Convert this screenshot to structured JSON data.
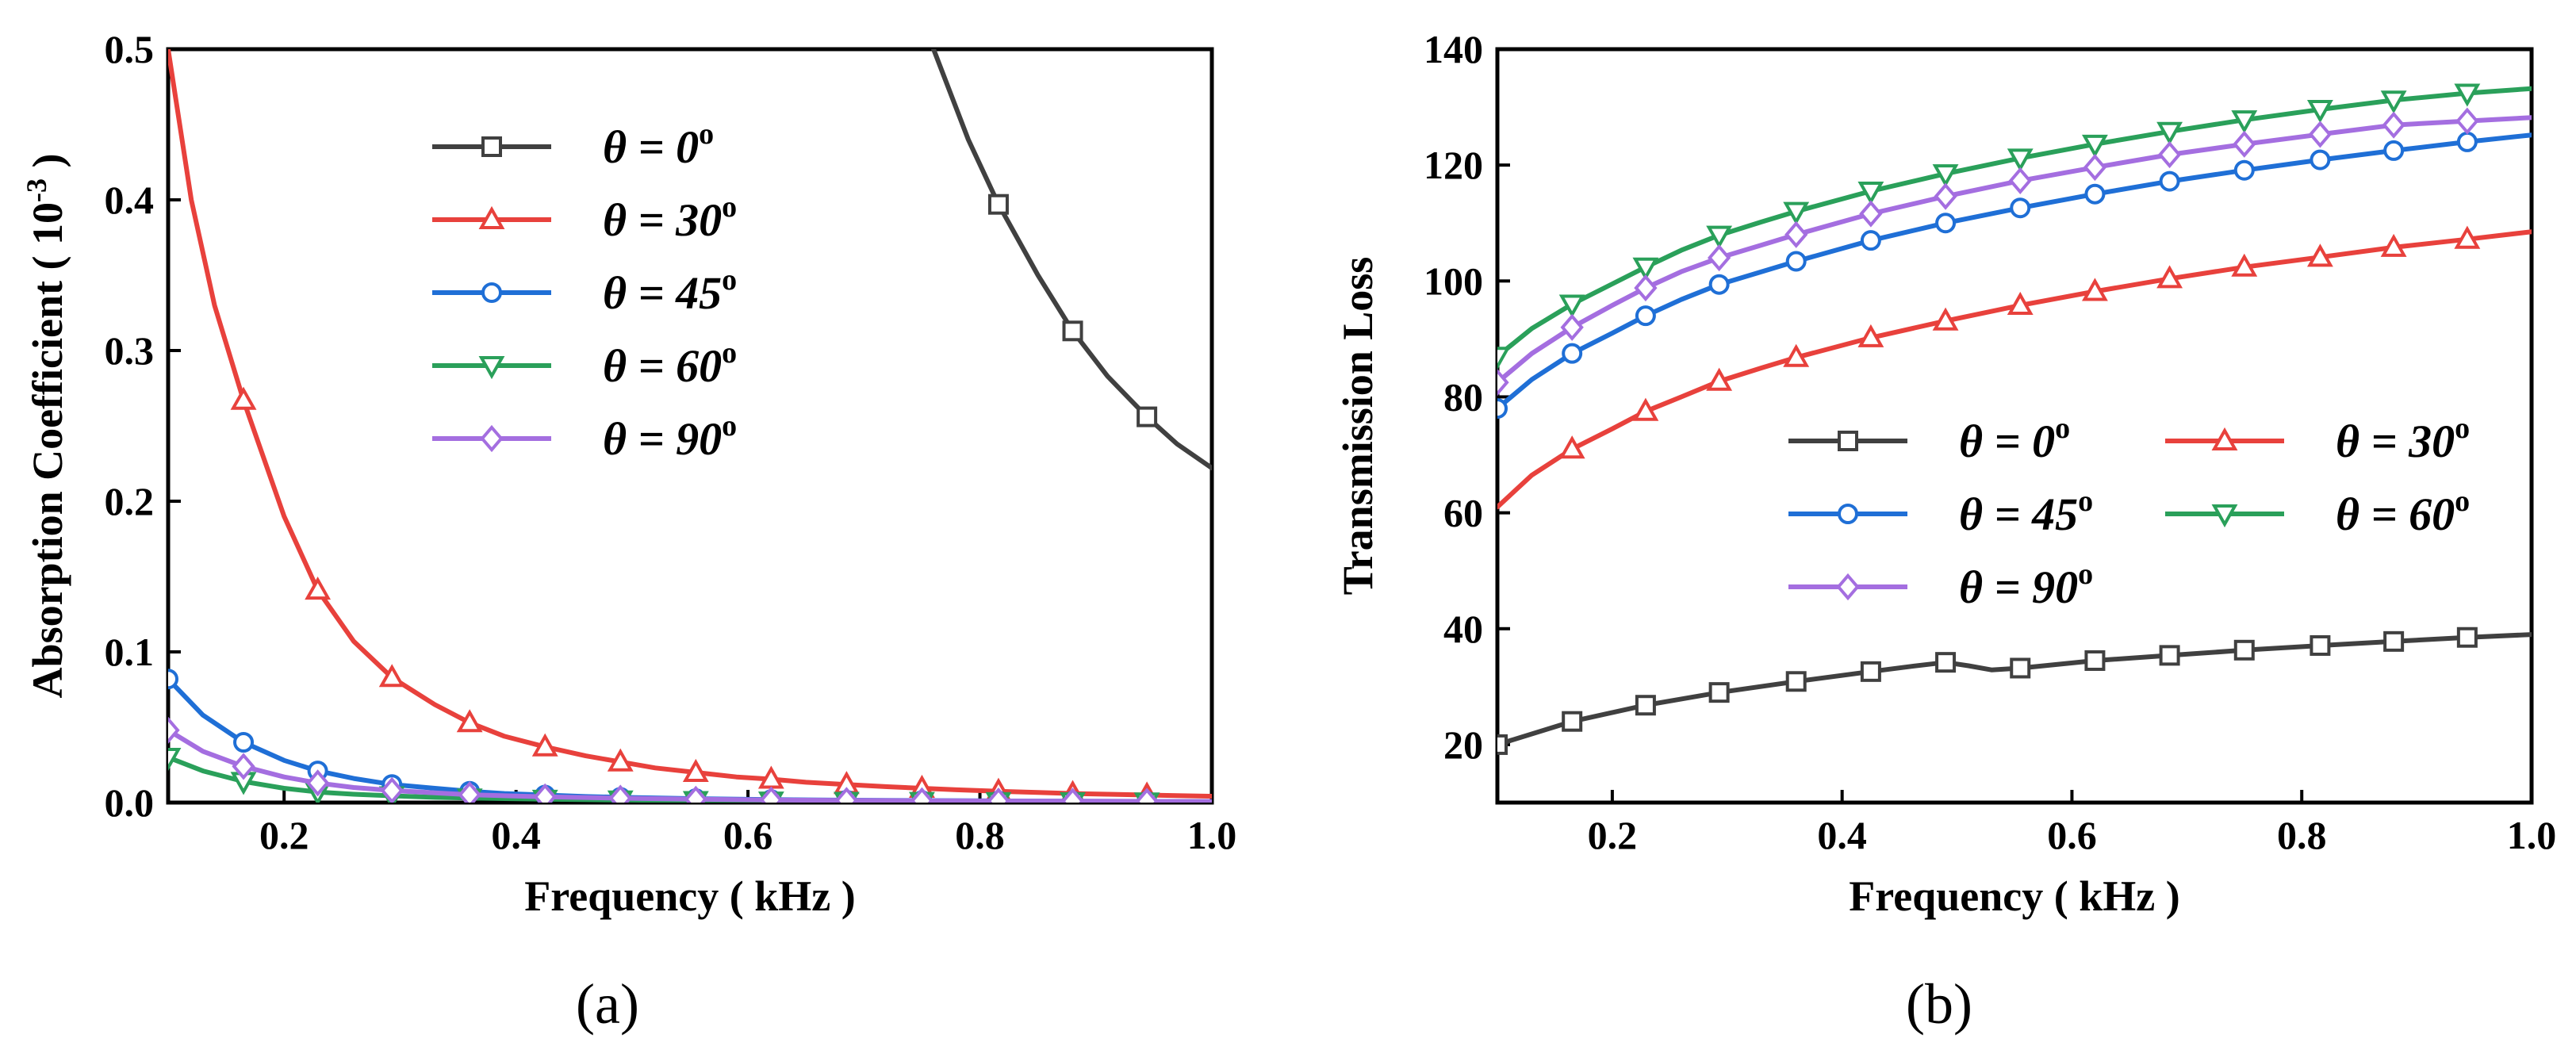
{
  "colors": {
    "theta0": "#404040",
    "theta30": "#e8413c",
    "theta45": "#1f6fd6",
    "theta60": "#2aa05a",
    "theta90": "#a46ee0"
  },
  "chart_data": [
    {
      "type": "line",
      "panel_label": "(a)",
      "xlabel": "Frequency ( kHz )",
      "ylabel": "Absorption Coefficient ( 10",
      "ylabel_exp": "-3",
      "ylabel_close": " )",
      "xlim": [
        0.1,
        1.0
      ],
      "ylim": [
        0.0,
        0.5
      ],
      "xticks": [
        0.2,
        0.4,
        0.6,
        0.8,
        1.0
      ],
      "xtick_labels": [
        "0.2",
        "0.4",
        "0.6",
        "0.8",
        "1.0"
      ],
      "yticks": [
        0.0,
        0.1,
        0.2,
        0.3,
        0.4,
        0.5
      ],
      "ytick_labels": [
        "0.0",
        "0.1",
        "0.2",
        "0.3",
        "0.4",
        "0.5"
      ],
      "legend": {
        "location": "top-center",
        "columns": 1
      },
      "series": [
        {
          "name": "θ = 0°",
          "label": "θ = 0",
          "sup": "o",
          "color_key": "theta0",
          "marker": "square",
          "x": [
            0.76,
            0.79,
            0.816,
            0.85,
            0.88,
            0.91,
            0.944,
            0.97,
            1.0
          ],
          "y": [
            0.5,
            0.44,
            0.397,
            0.35,
            0.313,
            0.283,
            0.256,
            0.238,
            0.222
          ],
          "marker_x": [
            0.816,
            0.88,
            0.944
          ]
        },
        {
          "name": "θ = 30°",
          "label": "θ = 30",
          "sup": "o",
          "color_key": "theta30",
          "marker": "triangle-up",
          "x": [
            0.1,
            0.12,
            0.14,
            0.165,
            0.2,
            0.229,
            0.26,
            0.293,
            0.33,
            0.36,
            0.39,
            0.425,
            0.46,
            0.49,
            0.52,
            0.555,
            0.59,
            0.62,
            0.65,
            0.685,
            0.72,
            0.75,
            0.78,
            0.816,
            0.85,
            0.88,
            0.91,
            0.944,
            0.97,
            1.0
          ],
          "y": [
            0.5,
            0.4,
            0.33,
            0.267,
            0.19,
            0.141,
            0.107,
            0.083,
            0.065,
            0.053,
            0.044,
            0.037,
            0.031,
            0.027,
            0.023,
            0.02,
            0.017,
            0.0155,
            0.0135,
            0.012,
            0.0105,
            0.0095,
            0.0085,
            0.0075,
            0.0067,
            0.006,
            0.0055,
            0.005,
            0.0046,
            0.0042
          ],
          "marker_x": [
            0.165,
            0.229,
            0.293,
            0.36,
            0.425,
            0.49,
            0.555,
            0.62,
            0.685,
            0.75,
            0.816,
            0.88,
            0.944
          ]
        },
        {
          "name": "θ = 45°",
          "label": "θ = 45",
          "sup": "o",
          "color_key": "theta45",
          "marker": "circle",
          "x": [
            0.1,
            0.13,
            0.165,
            0.2,
            0.229,
            0.26,
            0.293,
            0.33,
            0.36,
            0.39,
            0.425,
            0.46,
            0.49,
            0.555,
            0.62,
            0.685,
            0.75,
            0.816,
            0.88,
            0.944,
            1.0
          ],
          "y": [
            0.082,
            0.058,
            0.04,
            0.028,
            0.021,
            0.016,
            0.012,
            0.0095,
            0.0075,
            0.006,
            0.005,
            0.004,
            0.0035,
            0.0026,
            0.002,
            0.0016,
            0.0013,
            0.0011,
            0.0009,
            0.0008,
            0.0007
          ],
          "marker_x": [
            0.1,
            0.165,
            0.229,
            0.293,
            0.36,
            0.425,
            0.49,
            0.555,
            0.62,
            0.685,
            0.75,
            0.816,
            0.88,
            0.944
          ]
        },
        {
          "name": "θ = 60°",
          "label": "θ = 60",
          "sup": "o",
          "color_key": "theta60",
          "marker": "triangle-down",
          "x": [
            0.1,
            0.13,
            0.165,
            0.2,
            0.229,
            0.26,
            0.293,
            0.33,
            0.36,
            0.425,
            0.49,
            0.555,
            0.62,
            0.685,
            0.75,
            0.816,
            0.88,
            0.944,
            1.0
          ],
          "y": [
            0.03,
            0.021,
            0.014,
            0.0095,
            0.007,
            0.0055,
            0.0045,
            0.0035,
            0.003,
            0.0022,
            0.0017,
            0.0013,
            0.001,
            0.0008,
            0.0007,
            0.0006,
            0.0005,
            0.0004,
            0.0004
          ],
          "marker_x": [
            0.1,
            0.165,
            0.229,
            0.293,
            0.36,
            0.425,
            0.49,
            0.555,
            0.62,
            0.685,
            0.75,
            0.816,
            0.88,
            0.944
          ]
        },
        {
          "name": "θ = 90°",
          "label": "θ = 90",
          "sup": "o",
          "color_key": "theta90",
          "marker": "diamond",
          "x": [
            0.1,
            0.13,
            0.165,
            0.2,
            0.229,
            0.26,
            0.293,
            0.33,
            0.36,
            0.425,
            0.49,
            0.555,
            0.62,
            0.685,
            0.75,
            0.816,
            0.88,
            0.944,
            1.0
          ],
          "y": [
            0.048,
            0.034,
            0.024,
            0.017,
            0.013,
            0.01,
            0.008,
            0.0064,
            0.0052,
            0.0038,
            0.0029,
            0.0022,
            0.0017,
            0.0014,
            0.0012,
            0.001,
            0.0009,
            0.0008,
            0.0007
          ],
          "marker_x": [
            0.1,
            0.165,
            0.229,
            0.293,
            0.36,
            0.425,
            0.49,
            0.555,
            0.62,
            0.685,
            0.75,
            0.816,
            0.88,
            0.944
          ]
        }
      ]
    },
    {
      "type": "line",
      "panel_label": "(b)",
      "xlabel": "Frequency ( kHz )",
      "ylabel": "Transmission Loss",
      "xlim": [
        0.1,
        1.0
      ],
      "ylim": [
        10,
        140
      ],
      "xticks": [
        0.2,
        0.4,
        0.6,
        0.8,
        1.0
      ],
      "xtick_labels": [
        "0.2",
        "0.4",
        "0.6",
        "0.8",
        "1.0"
      ],
      "yticks": [
        20,
        40,
        60,
        80,
        100,
        120,
        140
      ],
      "ytick_labels": [
        "20",
        "40",
        "60",
        "80",
        "100",
        "120",
        "140"
      ],
      "legend": {
        "location": "center-right",
        "columns": 2
      },
      "series": [
        {
          "name": "θ = 0°",
          "label": "θ = 0",
          "sup": "o",
          "color_key": "theta0",
          "marker": "square",
          "x": [
            0.1,
            0.165,
            0.229,
            0.293,
            0.36,
            0.425,
            0.46,
            0.49,
            0.51,
            0.53,
            0.555,
            0.62,
            0.685,
            0.75,
            0.816,
            0.88,
            0.944,
            1.0
          ],
          "y": [
            20,
            24,
            26.8,
            29,
            30.9,
            32.6,
            33.5,
            34.2,
            33.6,
            32.9,
            33.2,
            34.5,
            35.4,
            36.3,
            37.1,
            37.8,
            38.5,
            39
          ],
          "marker_x": [
            0.1,
            0.165,
            0.229,
            0.293,
            0.36,
            0.425,
            0.49,
            0.555,
            0.62,
            0.685,
            0.75,
            0.816,
            0.88,
            0.944
          ]
        },
        {
          "name": "θ = 30°",
          "label": "θ = 30",
          "sup": "o",
          "color_key": "theta30",
          "marker": "triangle-up",
          "x": [
            0.1,
            0.13,
            0.165,
            0.2,
            0.229,
            0.26,
            0.293,
            0.33,
            0.36,
            0.425,
            0.49,
            0.555,
            0.62,
            0.685,
            0.75,
            0.816,
            0.88,
            0.944,
            1.0
          ],
          "y": [
            61,
            66.5,
            71,
            74.5,
            77.5,
            80,
            82.7,
            85,
            86.8,
            90.2,
            93.1,
            95.8,
            98.2,
            100.4,
            102.4,
            104.1,
            105.8,
            107.2,
            108.5
          ],
          "marker_x": [
            0.165,
            0.229,
            0.293,
            0.36,
            0.425,
            0.49,
            0.555,
            0.62,
            0.685,
            0.75,
            0.816,
            0.88,
            0.944
          ]
        },
        {
          "name": "θ = 45°",
          "label": "θ = 45",
          "sup": "o",
          "color_key": "theta45",
          "marker": "circle",
          "x": [
            0.1,
            0.13,
            0.165,
            0.2,
            0.229,
            0.26,
            0.293,
            0.33,
            0.36,
            0.425,
            0.49,
            0.555,
            0.62,
            0.685,
            0.75,
            0.816,
            0.88,
            0.944,
            1.0
          ],
          "y": [
            78,
            83,
            87.5,
            91,
            94,
            96.8,
            99.4,
            101.6,
            103.4,
            107,
            110,
            112.6,
            115,
            117.2,
            119.1,
            120.9,
            122.5,
            124,
            125.2
          ],
          "marker_x": [
            0.1,
            0.165,
            0.229,
            0.293,
            0.36,
            0.425,
            0.49,
            0.555,
            0.62,
            0.685,
            0.75,
            0.816,
            0.88,
            0.944
          ]
        },
        {
          "name": "θ = 60°",
          "label": "θ = 60",
          "sup": "o",
          "color_key": "theta60",
          "marker": "triangle-down",
          "x": [
            0.1,
            0.13,
            0.165,
            0.2,
            0.229,
            0.26,
            0.293,
            0.33,
            0.36,
            0.425,
            0.49,
            0.555,
            0.62,
            0.685,
            0.75,
            0.816,
            0.88,
            0.944,
            1.0
          ],
          "y": [
            87,
            91.8,
            96,
            99.5,
            102.4,
            105.3,
            107.9,
            110.2,
            112,
            115.5,
            118.5,
            121.2,
            123.6,
            125.8,
            127.8,
            129.6,
            131.2,
            132.4,
            133.2
          ],
          "marker_x": [
            0.1,
            0.165,
            0.229,
            0.293,
            0.36,
            0.425,
            0.49,
            0.555,
            0.62,
            0.685,
            0.75,
            0.816,
            0.88,
            0.944
          ]
        },
        {
          "name": "θ = 90°",
          "label": "θ = 90",
          "sup": "o",
          "color_key": "theta90",
          "marker": "diamond",
          "x": [
            0.1,
            0.13,
            0.165,
            0.2,
            0.229,
            0.26,
            0.293,
            0.33,
            0.36,
            0.425,
            0.49,
            0.555,
            0.62,
            0.685,
            0.75,
            0.816,
            0.88,
            0.944,
            1.0
          ],
          "y": [
            82.5,
            87.5,
            92,
            95.8,
            98.8,
            101.6,
            104,
            106.2,
            108,
            111.6,
            114.6,
            117.3,
            119.6,
            121.8,
            123.6,
            125.3,
            126.9,
            127.6,
            128.2
          ],
          "marker_x": [
            0.1,
            0.165,
            0.229,
            0.293,
            0.36,
            0.425,
            0.49,
            0.555,
            0.62,
            0.685,
            0.75,
            0.816,
            0.88,
            0.944
          ]
        }
      ]
    }
  ]
}
